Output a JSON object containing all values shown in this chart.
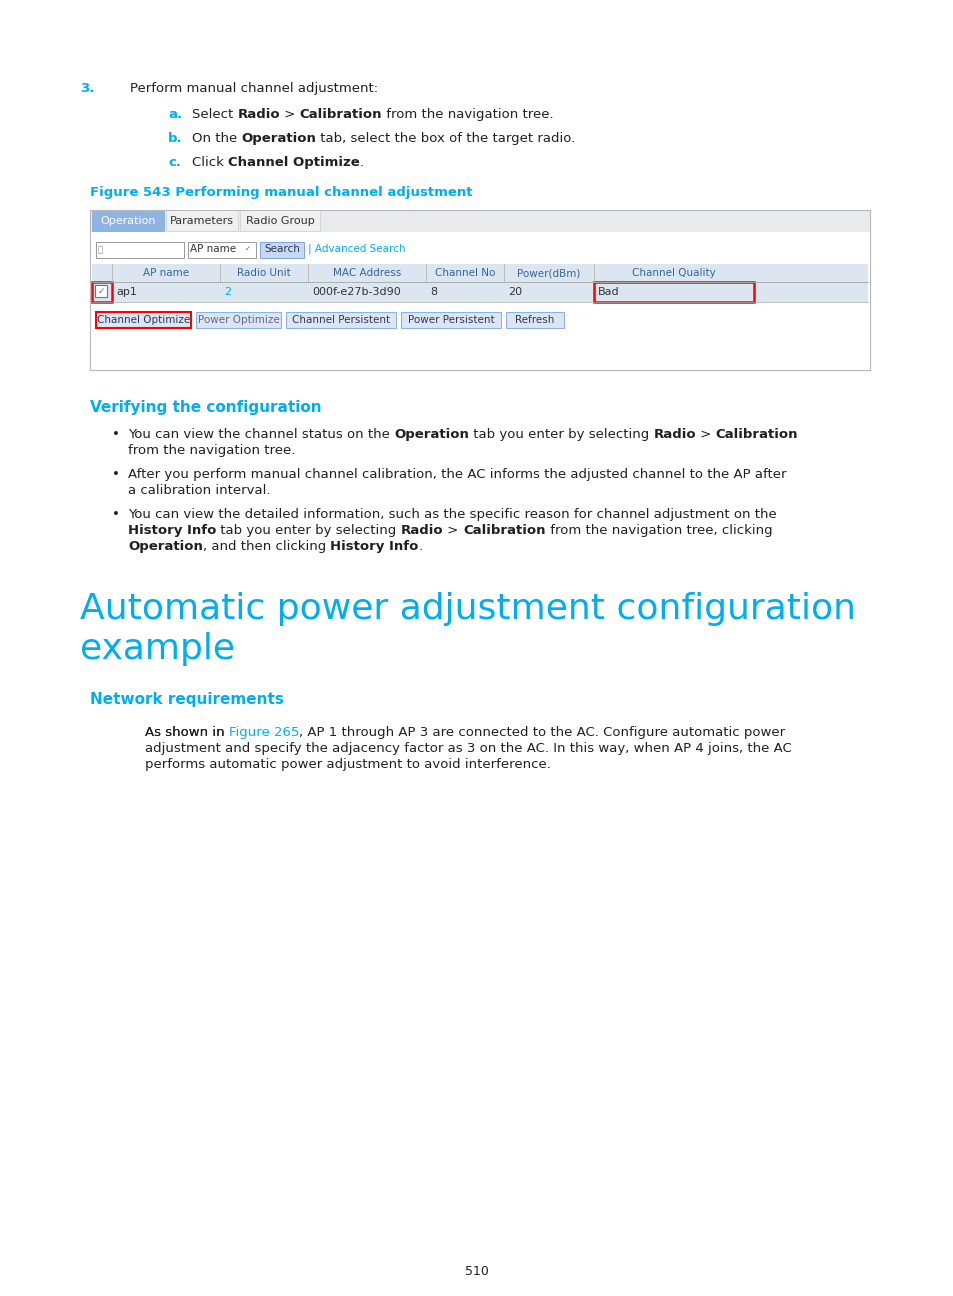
{
  "bg_color": "#ffffff",
  "cyan_color": "#00aeef",
  "text_color": "#231f20",
  "link_color": "#00aeef",
  "red_border": "#ff0000",
  "table_header_color": "#4472a8",
  "page_number": "510",
  "figure_label": "Figure 543 Performing manual channel adjustment",
  "tabs": [
    "Operation",
    "Parameters",
    "Radio Group"
  ],
  "table_headers": [
    "AP name",
    "Radio Unit",
    "MAC Address",
    "Channel No",
    "Power(dBm)",
    "Channel Quality"
  ],
  "table_row": [
    "ap1",
    "2",
    "000f-e27b-3d90",
    "8",
    "20",
    "Bad"
  ],
  "buttons": [
    "Channel Optimize",
    "Power Optimize",
    "Channel Persistent",
    "Power Persistent",
    "Refresh"
  ],
  "section1_title": "Verifying the configuration",
  "section2_line1": "Automatic power adjustment configuration",
  "section2_line2": "example",
  "section3_title": "Network requirements",
  "network_link": "Figure 265"
}
